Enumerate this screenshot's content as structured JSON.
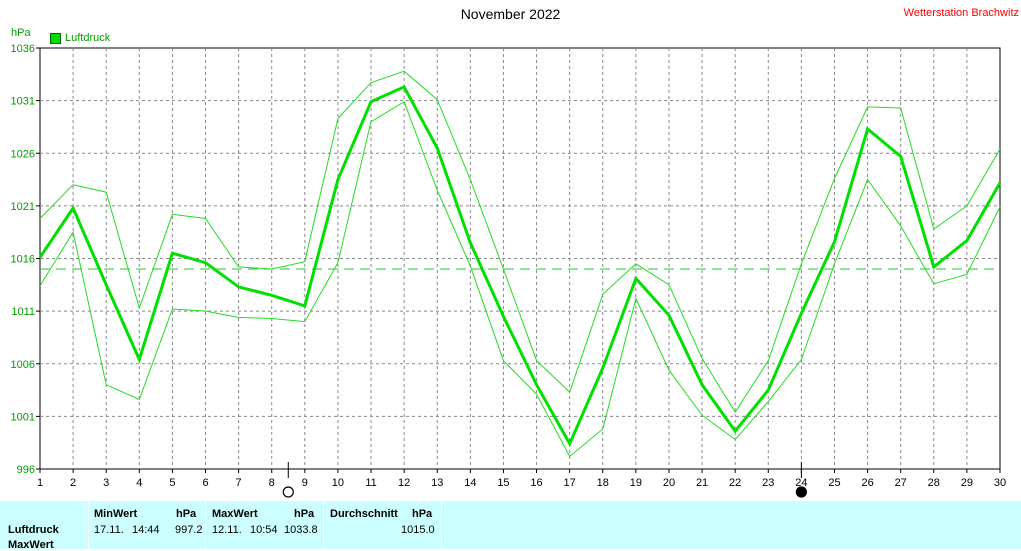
{
  "header": {
    "title": "November 2022",
    "station": "Wetterstation Brachwitz",
    "unit": "hPa",
    "legend_label": "Luftdruck"
  },
  "colors": {
    "main_line": "#00e000",
    "band_line": "#22dd22",
    "avg_line": "#22cc22",
    "grid": "#888888",
    "station_text": "#ff0000",
    "stats_bg": "#ccffff"
  },
  "moon_markers": [
    {
      "day": 8.5,
      "phase": "full-moon"
    },
    {
      "day": 24,
      "phase": "new-moon"
    }
  ],
  "chart_data": {
    "type": "line",
    "title": "November 2022",
    "ylabel": "hPa",
    "x": [
      1,
      2,
      3,
      4,
      5,
      6,
      7,
      8,
      9,
      10,
      11,
      12,
      13,
      14,
      15,
      16,
      17,
      18,
      19,
      20,
      21,
      22,
      23,
      24,
      25,
      26,
      27,
      28,
      29,
      30
    ],
    "xlim": [
      1,
      30
    ],
    "ylim": [
      996,
      1036
    ],
    "y_ticks": [
      996,
      1001,
      1006,
      1011,
      1016,
      1021,
      1026,
      1031,
      1036
    ],
    "grid": true,
    "legend": "top-left",
    "average": 1015.0,
    "series": [
      {
        "name": "Luftdruck",
        "role": "mean",
        "values": [
          1016.1,
          1020.8,
          1013.5,
          1006.4,
          1016.5,
          1015.6,
          1013.3,
          1012.5,
          1011.5,
          1023.5,
          1030.9,
          1032.3,
          1026.5,
          1017.5,
          1010.5,
          1004.0,
          998.4,
          1005.6,
          1014.1,
          1010.6,
          1004.0,
          999.6,
          1003.5,
          1010.8,
          1017.6,
          1028.3,
          1025.7,
          1015.2,
          1017.7,
          1023.2
        ]
      },
      {
        "role": "max",
        "values": [
          1019.8,
          1023.0,
          1022.3,
          1011.3,
          1020.2,
          1019.8,
          1015.2,
          1015.0,
          1015.7,
          1029.3,
          1032.7,
          1033.8,
          1031.1,
          1023.5,
          1015.0,
          1006.3,
          1003.3,
          1012.6,
          1015.5,
          1013.5,
          1006.5,
          1001.4,
          1006.3,
          1015.5,
          1023.6,
          1030.4,
          1030.3,
          1018.8,
          1021.0,
          1026.4
        ]
      },
      {
        "role": "min",
        "values": [
          1013.4,
          1018.5,
          1004.0,
          1002.6,
          1011.2,
          1011.0,
          1010.4,
          1010.3,
          1010.0,
          1015.6,
          1029.0,
          1030.9,
          1022.5,
          1015.3,
          1006.3,
          1003.1,
          997.2,
          999.8,
          1012.2,
          1005.4,
          1001.1,
          998.8,
          1002.4,
          1006.4,
          1015.5,
          1023.5,
          1019.1,
          1013.6,
          1014.5,
          1020.9
        ]
      }
    ]
  },
  "stats": {
    "row_label": "Luftdruck",
    "row_label_2": "MaxWert",
    "min_header": "MinWert",
    "min_unit": "hPa",
    "min_date": "17.11.",
    "min_time": "14:44",
    "min_value": "997.2",
    "max_header": "MaxWert",
    "max_unit": "hPa",
    "max_date": "12.11.",
    "max_time": "10:54",
    "max_value": "1033.8",
    "avg_header": "Durchschnitt",
    "avg_unit": "hPa",
    "avg_value": "1015.0"
  }
}
